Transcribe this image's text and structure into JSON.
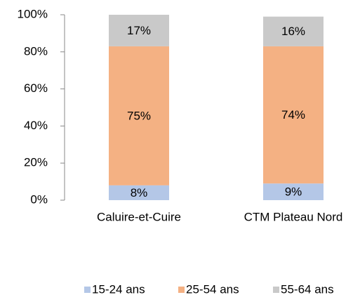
{
  "chart_data": {
    "type": "stacked_bar",
    "categories": [
      "Caluire-et-Cuire",
      "CTM Plateau Nord"
    ],
    "series": [
      {
        "name": "15-24 ans",
        "color": "#b4c7e7",
        "values": [
          8,
          9
        ],
        "value_labels": [
          "8%",
          "9%"
        ]
      },
      {
        "name": "25-54 ans",
        "color": "#f4b183",
        "values": [
          75,
          74
        ],
        "value_labels": [
          "75%",
          "74%"
        ]
      },
      {
        "name": "55-64 ans",
        "color": "#c9c9c9",
        "values": [
          17,
          16
        ],
        "value_labels": [
          "17%",
          "16%"
        ]
      }
    ],
    "ylim": [
      0,
      100
    ],
    "yticks": [
      {
        "value": 0,
        "label": "0%"
      },
      {
        "value": 20,
        "label": "20%"
      },
      {
        "value": 40,
        "label": "40%"
      },
      {
        "value": 60,
        "label": "60%"
      },
      {
        "value": 80,
        "label": "80%"
      },
      {
        "value": 100,
        "label": "100%"
      }
    ],
    "legend": "bottom"
  }
}
